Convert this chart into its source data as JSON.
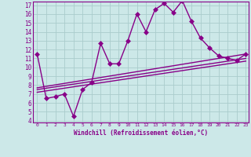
{
  "bg_color": "#cce8e8",
  "line_color": "#880088",
  "grid_color": "#aacccc",
  "xlabel": "Windchill (Refroidissement éolien,°C)",
  "xlim": [
    -0.5,
    23.3
  ],
  "ylim": [
    3.8,
    17.4
  ],
  "xticks": [
    0,
    1,
    2,
    3,
    4,
    5,
    6,
    7,
    8,
    9,
    10,
    11,
    12,
    13,
    14,
    15,
    16,
    17,
    18,
    19,
    20,
    21,
    22,
    23
  ],
  "yticks": [
    4,
    5,
    6,
    7,
    8,
    9,
    10,
    11,
    12,
    13,
    14,
    15,
    16,
    17
  ],
  "series_main": {
    "x": [
      0,
      1,
      2,
      3,
      4,
      5,
      6,
      7,
      8,
      9,
      10,
      11,
      12,
      13,
      14,
      15,
      16,
      17,
      18,
      19,
      20,
      21,
      22,
      23
    ],
    "y": [
      11.5,
      6.5,
      6.7,
      7.0,
      4.5,
      7.5,
      8.3,
      12.7,
      10.4,
      10.4,
      13.0,
      16.0,
      14.0,
      16.5,
      17.2,
      16.2,
      17.5,
      15.2,
      13.3,
      12.2,
      11.3,
      11.0,
      10.8,
      11.5
    ]
  },
  "series_lines": [
    {
      "x0": 0,
      "y0": 7.7,
      "x1": 23,
      "y1": 11.5
    },
    {
      "x0": 0,
      "y0": 7.5,
      "x1": 23,
      "y1": 11.0
    },
    {
      "x0": 0,
      "y0": 7.2,
      "x1": 23,
      "y1": 10.7
    }
  ]
}
